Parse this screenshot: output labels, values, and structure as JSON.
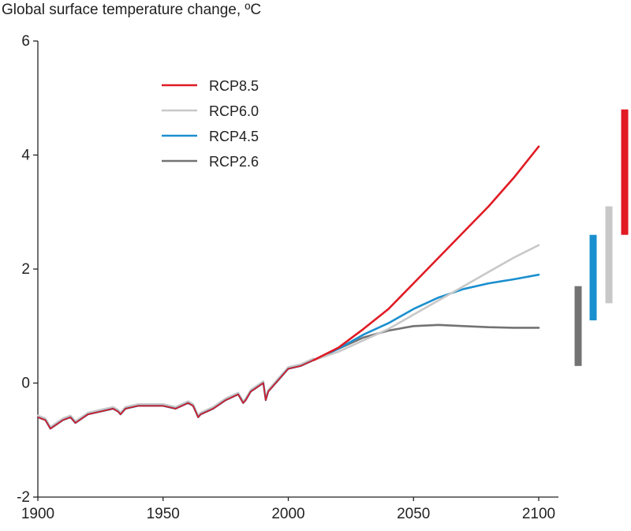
{
  "chart_data": {
    "type": "line",
    "title": "Global surface temperature change, ºC",
    "xlim": [
      1900,
      2100
    ],
    "ylim": [
      -2,
      6
    ],
    "x_ticks": [
      1900,
      1950,
      2000,
      2050,
      2100
    ],
    "y_ticks": [
      -2,
      0,
      2,
      4,
      6
    ],
    "grid": false,
    "legend_position": "top-left",
    "historical": {
      "x": [
        1900,
        1903,
        1905,
        1910,
        1913,
        1915,
        1920,
        1930,
        1932,
        1933,
        1935,
        1940,
        1950,
        1955,
        1960,
        1962,
        1963,
        1964,
        1965,
        1970,
        1975,
        1980,
        1982,
        1983,
        1985,
        1990,
        1991,
        1992,
        1995,
        2000,
        2005,
        2010
      ],
      "y": [
        -0.6,
        -0.65,
        -0.8,
        -0.65,
        -0.6,
        -0.7,
        -0.55,
        -0.45,
        -0.5,
        -0.55,
        -0.45,
        -0.4,
        -0.4,
        -0.45,
        -0.35,
        -0.4,
        -0.5,
        -0.6,
        -0.55,
        -0.45,
        -0.3,
        -0.2,
        -0.35,
        -0.3,
        -0.15,
        0.0,
        -0.3,
        -0.15,
        0.0,
        0.25,
        0.3,
        0.4
      ]
    },
    "series": [
      {
        "name": "RCP8.5",
        "color": "#e01b24",
        "x": [
          2010,
          2020,
          2030,
          2040,
          2050,
          2060,
          2070,
          2080,
          2090,
          2100
        ],
        "y": [
          0.4,
          0.62,
          0.95,
          1.3,
          1.75,
          2.2,
          2.65,
          3.1,
          3.6,
          4.15
        ]
      },
      {
        "name": "RCP6.0",
        "color": "#c8c8c8",
        "x": [
          2010,
          2020,
          2030,
          2040,
          2050,
          2060,
          2070,
          2080,
          2090,
          2100
        ],
        "y": [
          0.4,
          0.55,
          0.75,
          0.95,
          1.2,
          1.45,
          1.7,
          1.95,
          2.2,
          2.42
        ]
      },
      {
        "name": "RCP4.5",
        "color": "#1a8fcf",
        "x": [
          2010,
          2020,
          2030,
          2040,
          2050,
          2060,
          2070,
          2080,
          2090,
          2100
        ],
        "y": [
          0.4,
          0.6,
          0.85,
          1.05,
          1.3,
          1.5,
          1.65,
          1.75,
          1.82,
          1.9
        ]
      },
      {
        "name": "RCP2.6",
        "color": "#737373",
        "x": [
          2010,
          2020,
          2030,
          2040,
          2050,
          2060,
          2070,
          2080,
          2090,
          2100
        ],
        "y": [
          0.4,
          0.6,
          0.8,
          0.92,
          1.0,
          1.02,
          1.0,
          0.98,
          0.97,
          0.97
        ]
      }
    ],
    "ranges_2100": [
      {
        "name": "RCP2.6",
        "color": "#737373",
        "low": 0.3,
        "high": 1.7
      },
      {
        "name": "RCP4.5",
        "color": "#1a8fcf",
        "low": 1.1,
        "high": 2.6
      },
      {
        "name": "RCP6.0",
        "color": "#c8c8c8",
        "low": 1.4,
        "high": 3.1
      },
      {
        "name": "RCP8.5",
        "color": "#e01b24",
        "low": 2.6,
        "high": 4.8
      }
    ]
  }
}
